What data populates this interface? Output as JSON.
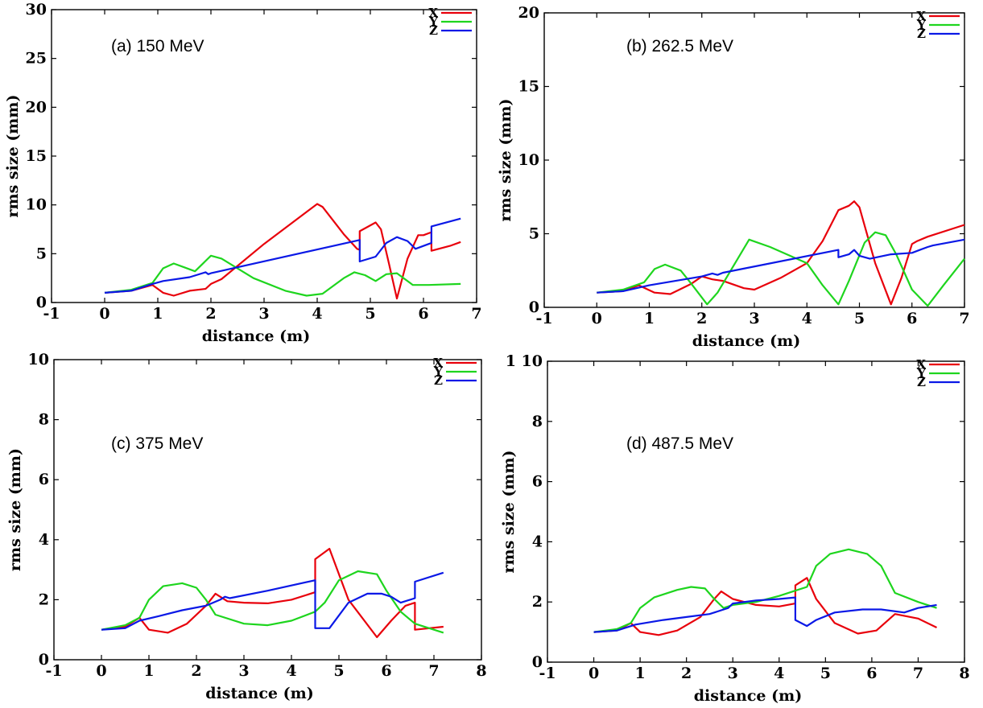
{
  "colors": {
    "x": "#e8000b",
    "y": "#1ed51e",
    "z": "#0a18e6"
  },
  "chart_data": [
    {
      "type": "line",
      "annotation": "(a) 150 MeV",
      "xlabel": "distance (m)",
      "ylabel": "rms size (mm)",
      "xlim": [
        -1,
        7
      ],
      "ylim": [
        0,
        30
      ],
      "xticks": [
        "-1",
        "0",
        "1",
        "2",
        "3",
        "4",
        "5",
        "6",
        "7"
      ],
      "yticks": [
        "0",
        "5",
        "10",
        "15",
        "20",
        "25",
        "30"
      ],
      "legend": "top-right",
      "grid": false,
      "series": [
        {
          "name": "X",
          "color": "x",
          "x": [
            0,
            0.5,
            0.9,
            1.1,
            1.3,
            1.6,
            1.9,
            2.0,
            2.2,
            3.0,
            4.0,
            4.1,
            4.5,
            4.75,
            4.8,
            4.8,
            5.1,
            5.2,
            5.35,
            5.5,
            5.7,
            5.9,
            6.0,
            6.15,
            6.15,
            6.5,
            6.7
          ],
          "y": [
            1,
            1.2,
            1.8,
            1.0,
            0.7,
            1.2,
            1.4,
            1.9,
            2.4,
            6,
            10.1,
            9.8,
            7,
            5.5,
            5.4,
            7.3,
            8.2,
            7.5,
            4,
            0.4,
            4.5,
            6.9,
            6.9,
            7.2,
            5.3,
            5.8,
            6.2
          ]
        },
        {
          "name": "Y",
          "color": "y",
          "x": [
            0,
            0.5,
            0.9,
            1.1,
            1.3,
            1.5,
            1.7,
            2.0,
            2.2,
            2.8,
            3.4,
            3.8,
            4.1,
            4.5,
            4.7,
            4.9,
            5.1,
            5.3,
            5.5,
            5.8,
            6.1,
            6.7
          ],
          "y": [
            1,
            1.3,
            2.0,
            3.5,
            4.0,
            3.6,
            3.2,
            4.8,
            4.5,
            2.5,
            1.2,
            0.7,
            0.9,
            2.5,
            3.1,
            2.8,
            2.2,
            2.9,
            3.0,
            1.8,
            1.8,
            1.9
          ]
        },
        {
          "name": "Z",
          "color": "z",
          "x": [
            0,
            0.5,
            0.9,
            1.1,
            1.6,
            1.9,
            1.95,
            2.0,
            4.8,
            4.8,
            5.1,
            5.3,
            5.5,
            5.7,
            5.85,
            6.1,
            6.15,
            6.15,
            6.7
          ],
          "y": [
            1,
            1.2,
            1.9,
            2.2,
            2.6,
            3.1,
            2.9,
            3.0,
            6.4,
            4.2,
            4.7,
            6.1,
            6.7,
            6.3,
            5.5,
            6.0,
            6.1,
            7.8,
            8.6
          ]
        }
      ]
    },
    {
      "type": "line",
      "annotation": "(b) 262.5 MeV",
      "xlabel": "distance (m)",
      "ylabel": "rms size (mm)",
      "xlim": [
        -1,
        7
      ],
      "ylim": [
        0,
        20
      ],
      "xticks": [
        "-1",
        "0",
        "1",
        "2",
        "3",
        "4",
        "5",
        "6",
        "7"
      ],
      "yticks": [
        "0",
        "5",
        "10",
        "15",
        "20"
      ],
      "legend": "top-right",
      "grid": false,
      "series": [
        {
          "name": "X",
          "color": "x",
          "x": [
            0,
            0.5,
            0.8,
            1.1,
            1.4,
            1.8,
            2.0,
            2.2,
            2.4,
            2.8,
            3.0,
            3.5,
            4.0,
            4.3,
            4.6,
            4.8,
            4.9,
            5.0,
            5.3,
            5.6,
            5.8,
            6.0,
            6.1,
            6.3,
            7.0
          ],
          "y": [
            1,
            1.1,
            1.5,
            1.0,
            0.9,
            1.6,
            2.1,
            1.9,
            1.8,
            1.3,
            1.2,
            2,
            3,
            4.5,
            6.6,
            6.9,
            7.2,
            6.8,
            3,
            0.2,
            2,
            4.3,
            4.5,
            4.8,
            5.6
          ]
        },
        {
          "name": "Y",
          "color": "y",
          "x": [
            0,
            0.5,
            0.9,
            1.1,
            1.3,
            1.6,
            1.8,
            2.1,
            2.3,
            2.9,
            3.3,
            4.0,
            4.3,
            4.6,
            4.8,
            5.1,
            5.3,
            5.5,
            5.7,
            6.0,
            6.3,
            6.6,
            7.0
          ],
          "y": [
            1,
            1.2,
            1.7,
            2.6,
            2.9,
            2.5,
            1.6,
            0.2,
            1,
            4.6,
            4.1,
            3,
            1.5,
            0.2,
            1.8,
            4.4,
            5.1,
            4.9,
            3.6,
            1.2,
            0.1,
            1.5,
            3.3
          ]
        },
        {
          "name": "Z",
          "color": "z",
          "x": [
            0,
            0.5,
            1.0,
            1.5,
            2.0,
            2.2,
            2.3,
            2.4,
            4.6,
            4.6,
            4.8,
            4.9,
            5.0,
            5.2,
            5.6,
            6.0,
            6.3,
            6.4,
            7.0
          ],
          "y": [
            1,
            1.1,
            1.5,
            1.8,
            2.1,
            2.3,
            2.2,
            2.35,
            3.9,
            3.4,
            3.6,
            3.9,
            3.5,
            3.3,
            3.6,
            3.7,
            4.1,
            4.2,
            4.6
          ]
        }
      ]
    },
    {
      "type": "line",
      "annotation": "(c) 375 MeV",
      "xlabel": "distance (m)",
      "ylabel": "rms size (mm)",
      "xlim": [
        -1,
        8
      ],
      "ylim": [
        0,
        10
      ],
      "xticks": [
        "-1",
        "0",
        "1",
        "2",
        "3",
        "4",
        "5",
        "6",
        "7",
        "8"
      ],
      "yticks": [
        "0",
        "2",
        "4",
        "6",
        "8",
        "10"
      ],
      "legend": "top-right",
      "grid": false,
      "series": [
        {
          "name": "X",
          "color": "x",
          "x": [
            0,
            0.5,
            0.8,
            1.0,
            1.4,
            1.8,
            2.2,
            2.4,
            2.65,
            3.0,
            3.5,
            4.0,
            4.5,
            4.5,
            4.8,
            5.2,
            5.8,
            6.1,
            6.4,
            6.6,
            6.6,
            7.2
          ],
          "y": [
            1,
            1.1,
            1.4,
            1.0,
            0.9,
            1.2,
            1.8,
            2.2,
            1.95,
            1.9,
            1.88,
            2.0,
            2.25,
            3.35,
            3.7,
            2,
            0.75,
            1.3,
            1.8,
            1.9,
            1.0,
            1.1
          ]
        },
        {
          "name": "Y",
          "color": "y",
          "x": [
            0,
            0.5,
            0.8,
            1.0,
            1.3,
            1.7,
            2.0,
            2.2,
            2.4,
            3.0,
            3.5,
            4.0,
            4.5,
            4.7,
            5.0,
            5.4,
            5.8,
            6.0,
            6.3,
            6.6,
            7.2
          ],
          "y": [
            1,
            1.15,
            1.4,
            2.0,
            2.45,
            2.55,
            2.4,
            2.0,
            1.5,
            1.2,
            1.15,
            1.3,
            1.6,
            1.9,
            2.65,
            2.95,
            2.85,
            2.3,
            1.6,
            1.2,
            0.9
          ]
        },
        {
          "name": "Z",
          "color": "z",
          "x": [
            0,
            0.5,
            0.8,
            1.2,
            1.7,
            2.2,
            2.5,
            2.6,
            2.7,
            3.5,
            4.5,
            4.5,
            4.8,
            5.2,
            5.6,
            5.9,
            6.1,
            6.3,
            6.6,
            6.6,
            7.2
          ],
          "y": [
            1,
            1.05,
            1.3,
            1.45,
            1.65,
            1.8,
            2.0,
            2.1,
            2.05,
            2.3,
            2.65,
            1.05,
            1.05,
            1.9,
            2.2,
            2.2,
            2.1,
            1.9,
            2.05,
            2.6,
            2.9
          ]
        }
      ]
    },
    {
      "type": "line",
      "annotation": "(d) 487.5 MeV",
      "xlabel": "distance (m)",
      "ylabel": "rms size (mm)",
      "xlim": [
        -1,
        8
      ],
      "ylim": [
        0,
        10
      ],
      "xticks": [
        "-1",
        "0",
        "1",
        "2",
        "3",
        "4",
        "5",
        "6",
        "7",
        "8"
      ],
      "yticks": [
        "0",
        "2",
        "4",
        "6",
        "8",
        "1 10"
      ],
      "legend": "top-right",
      "grid": false,
      "series": [
        {
          "name": "X",
          "color": "x",
          "x": [
            0,
            0.5,
            0.8,
            1.0,
            1.4,
            1.8,
            2.3,
            2.6,
            2.75,
            3.0,
            3.5,
            4.0,
            4.35,
            4.35,
            4.6,
            4.8,
            5.2,
            5.7,
            6.1,
            6.5,
            7.0,
            7.4
          ],
          "y": [
            1,
            1.05,
            1.3,
            1.0,
            0.9,
            1.05,
            1.5,
            2.1,
            2.35,
            2.1,
            1.9,
            1.85,
            1.95,
            2.55,
            2.8,
            2.1,
            1.3,
            0.95,
            1.05,
            1.6,
            1.45,
            1.15
          ]
        },
        {
          "name": "Y",
          "color": "y",
          "x": [
            0,
            0.5,
            0.8,
            1.0,
            1.3,
            1.8,
            2.1,
            2.4,
            2.6,
            2.8,
            3.0,
            3.5,
            4.0,
            4.4,
            4.6,
            4.8,
            5.1,
            5.5,
            5.9,
            6.2,
            6.5,
            7.0,
            7.4
          ],
          "y": [
            1,
            1.1,
            1.3,
            1.8,
            2.15,
            2.4,
            2.5,
            2.45,
            2.1,
            1.8,
            1.9,
            2.0,
            2.2,
            2.4,
            2.5,
            3.2,
            3.6,
            3.75,
            3.6,
            3.2,
            2.3,
            2.0,
            1.8
          ]
        },
        {
          "name": "Z",
          "color": "z",
          "x": [
            0,
            0.5,
            0.9,
            1.5,
            2.0,
            2.5,
            2.9,
            3.0,
            3.5,
            4.0,
            4.35,
            4.35,
            4.6,
            4.8,
            5.2,
            5.8,
            6.2,
            6.7,
            7.0,
            7.4
          ],
          "y": [
            1,
            1.05,
            1.25,
            1.4,
            1.5,
            1.6,
            1.8,
            1.95,
            2.05,
            2.1,
            2.15,
            1.4,
            1.2,
            1.4,
            1.65,
            1.75,
            1.75,
            1.65,
            1.8,
            1.9
          ]
        }
      ]
    }
  ]
}
